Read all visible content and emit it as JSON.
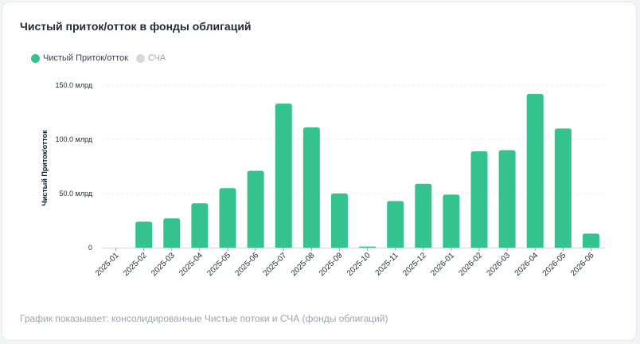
{
  "title": "Чистый приток/отток в фонды облигаций",
  "footnote": "График показывает: консолидированные Чистые потоки и СЧА (фонды облигаций)",
  "colors": {
    "primary": "#34c38f",
    "inactive": "#d9d9d9",
    "grid": "#eeeeee"
  },
  "legend": [
    {
      "label": "Чистый Приток/отток",
      "active": true
    },
    {
      "label": "СЧА",
      "active": false
    }
  ],
  "chart_data": {
    "type": "bar",
    "ylabel": "Чистый Приток/отток",
    "ylim": [
      0,
      150
    ],
    "y_ticks": [
      {
        "value": 0,
        "label": "0"
      },
      {
        "value": 50,
        "label": "50.0 млрд"
      },
      {
        "value": 100,
        "label": "100.0 млрд"
      },
      {
        "value": 150,
        "label": "150.0 млрд"
      }
    ],
    "grid": true,
    "legend_position": "top-left",
    "categories": [
      "2025-01",
      "2025-02",
      "2025-03",
      "2025-04",
      "2025-05",
      "2025-06",
      "2025-07",
      "2025-08",
      "2025-09",
      "2025-10",
      "2025-11",
      "2025-12",
      "2026-01",
      "2026-02",
      "2026-03",
      "2026-04",
      "2026-05",
      "2026-06"
    ],
    "series": [
      {
        "name": "Чистый Приток/отток",
        "values": [
          0,
          24,
          27,
          41,
          55,
          71,
          133,
          111,
          50,
          1,
          43,
          59,
          49,
          89,
          90,
          142,
          110,
          13
        ]
      }
    ]
  }
}
